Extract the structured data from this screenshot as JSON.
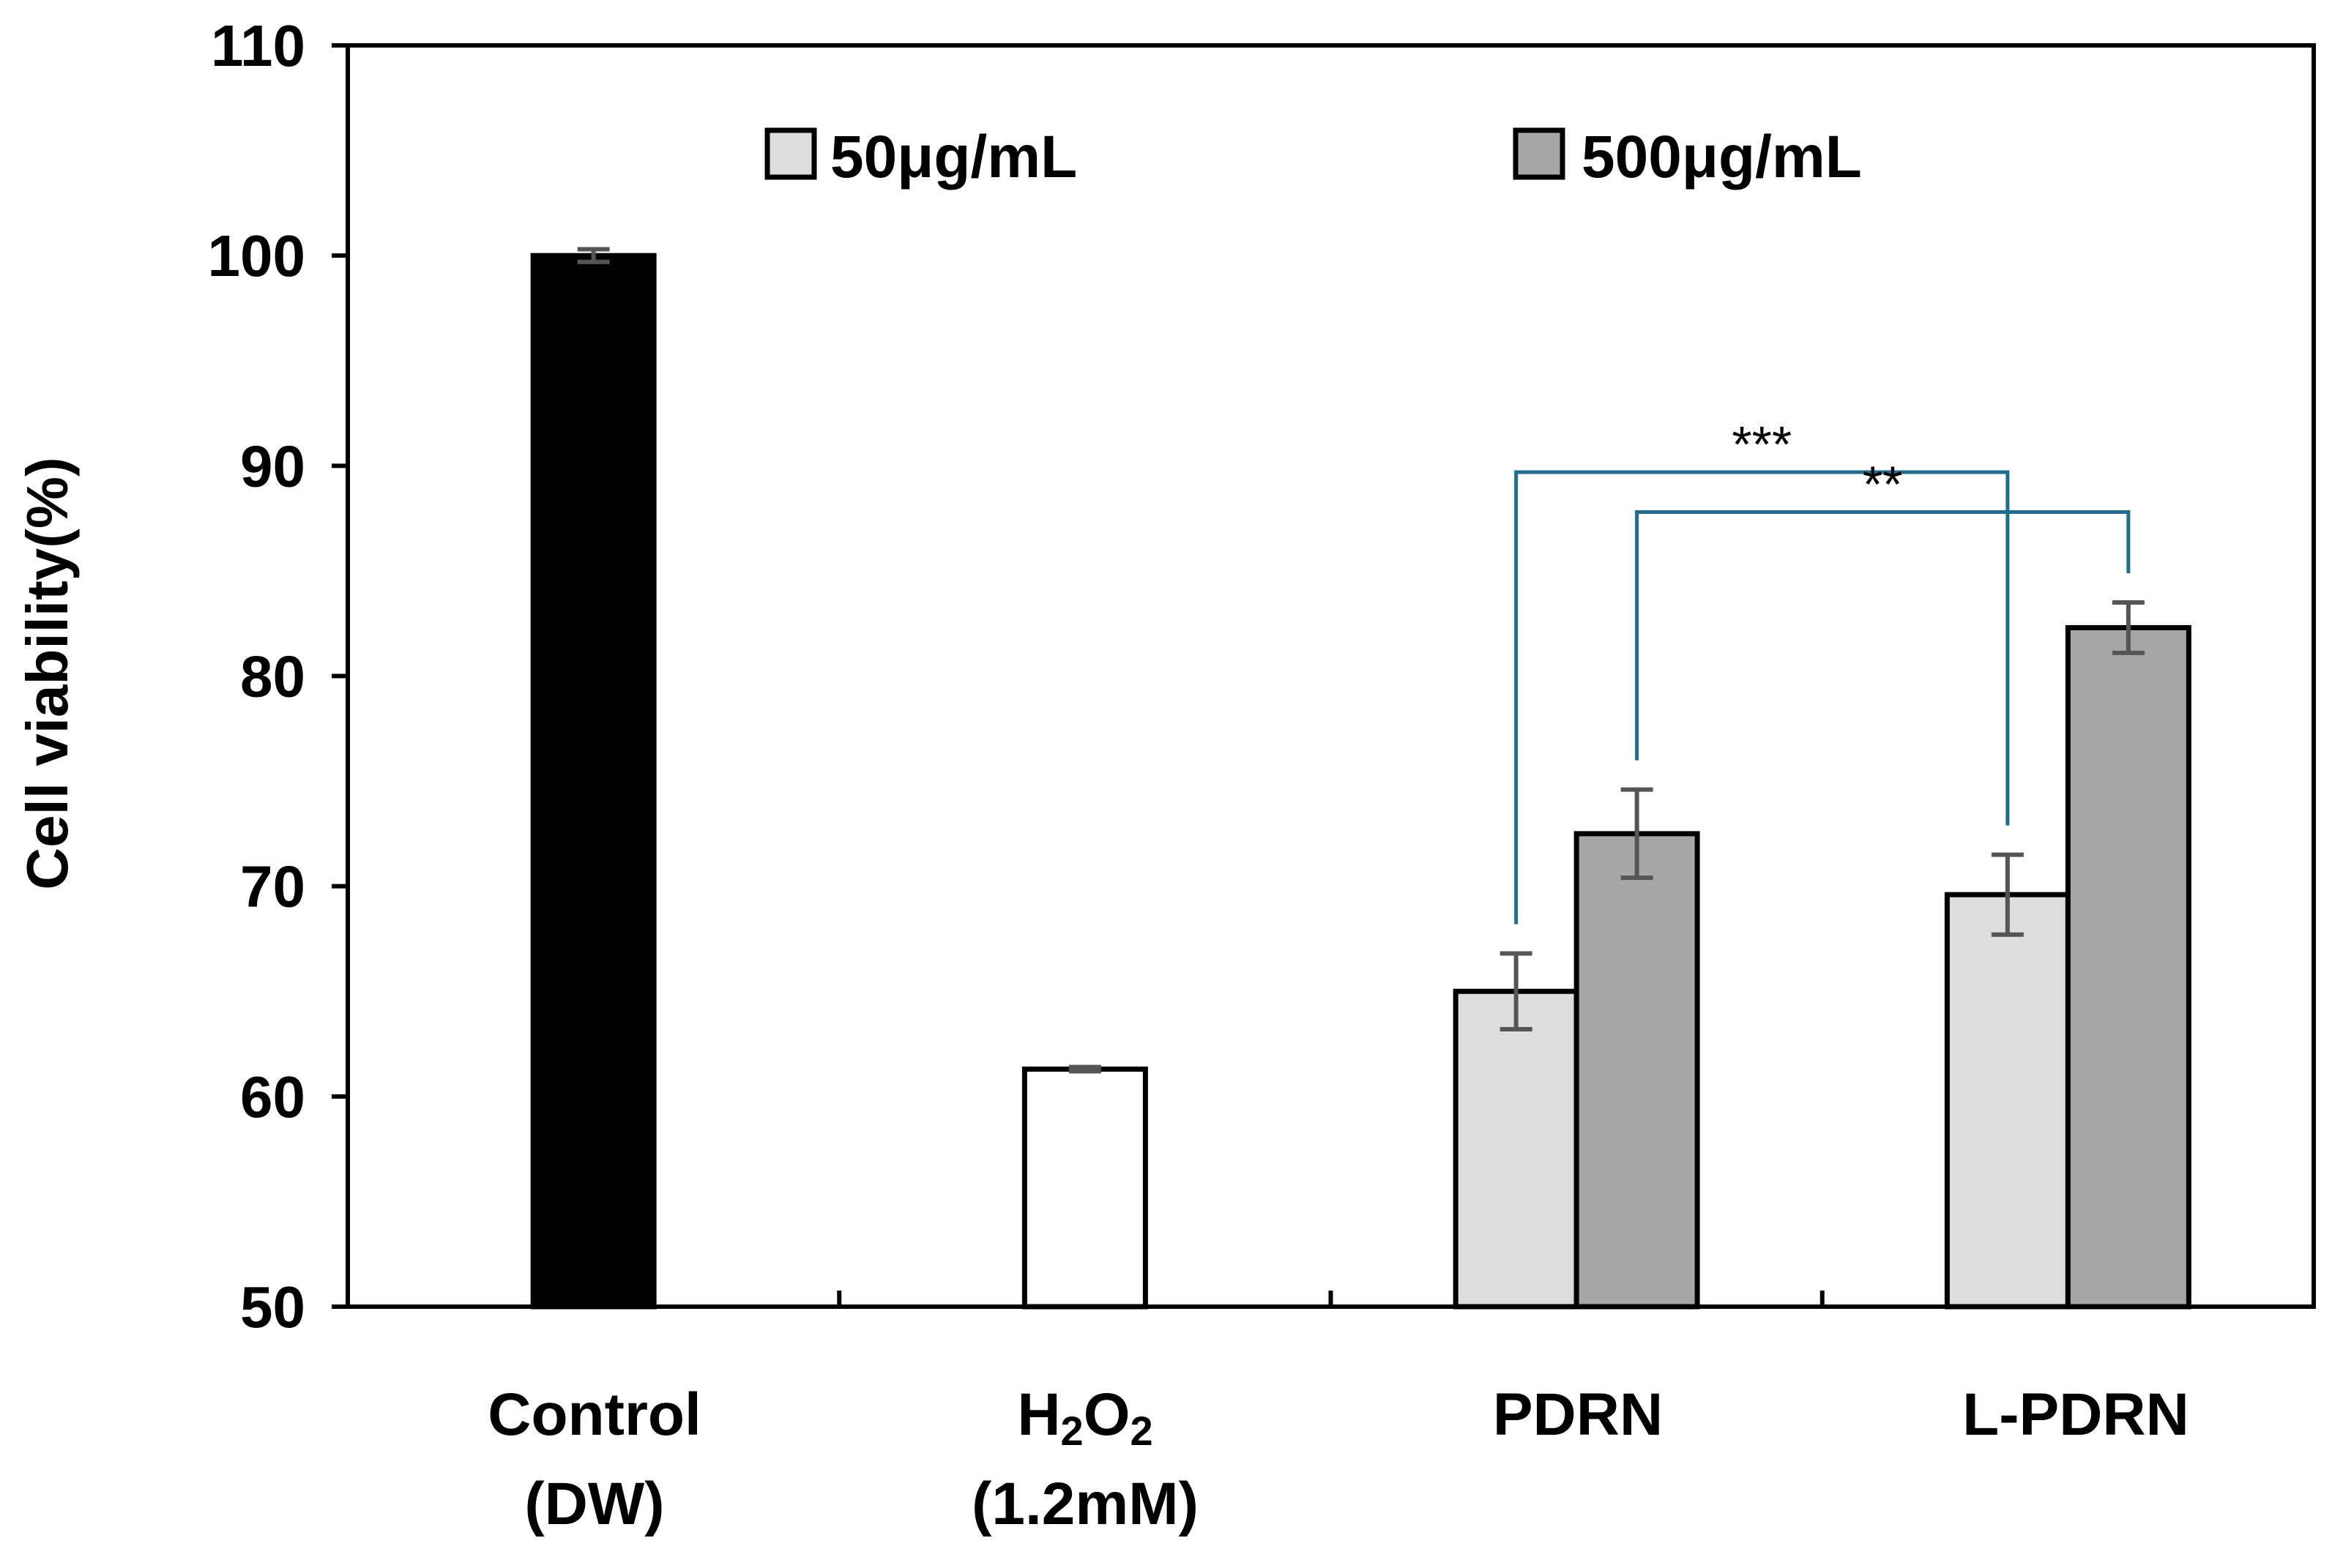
{
  "chart_data": {
    "type": "bar",
    "ylabel": "Cell viability(%)",
    "xlabel": "",
    "ylim": [
      50,
      110
    ],
    "yticks": [
      50,
      60,
      70,
      80,
      90,
      100,
      110
    ],
    "grid": false,
    "legend_position": "top",
    "categories": [
      {
        "line1": "Control",
        "line2": "(DW)"
      },
      {
        "line1": "H2O2",
        "line2": "(1.2mM)"
      },
      {
        "line1": "PDRN",
        "line2": ""
      },
      {
        "line1": "L-PDRN",
        "line2": ""
      }
    ],
    "series": [
      {
        "name": "50μg/mL",
        "color": "#dddddd",
        "values": [
          null,
          null,
          65.0,
          69.6
        ],
        "errors": [
          null,
          null,
          1.8,
          1.9
        ]
      },
      {
        "name": "500μg/mL",
        "color": "#a6a6a6",
        "values": [
          null,
          null,
          72.5,
          82.3
        ],
        "errors": [
          null,
          null,
          2.1,
          1.2
        ]
      }
    ],
    "single_bars": [
      {
        "category_index": 0,
        "value": 100.0,
        "error": 0.3,
        "color": "#000000"
      },
      {
        "category_index": 1,
        "value": 61.3,
        "error": 0.1,
        "color": "#ffffff"
      }
    ],
    "significance": [
      {
        "label": "***",
        "from": "PDRN 50μg/mL",
        "to": "L-PDRN 50μg/mL"
      },
      {
        "label": "**",
        "from": "PDRN 500μg/mL",
        "to": "L-PDRN 500μg/mL"
      }
    ],
    "bracket_color": "#1e6e8e"
  }
}
